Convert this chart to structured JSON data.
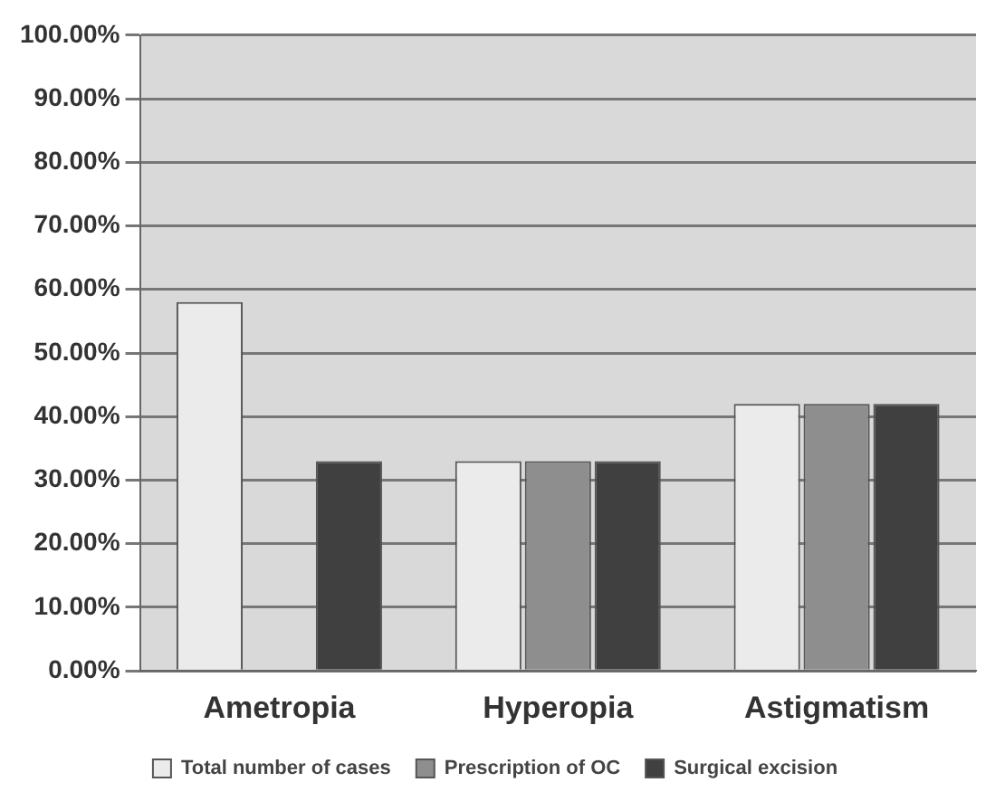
{
  "chart_data": {
    "type": "bar",
    "categories": [
      "Ametropia",
      "Hyperopia",
      "Astigmatism"
    ],
    "series": [
      {
        "name": "Total number of cases",
        "color": "#ebebeb",
        "values": [
          58,
          33,
          42
        ]
      },
      {
        "name": "Prescription of OC",
        "color": "#8e8e8e",
        "values": [
          0,
          33,
          42
        ]
      },
      {
        "name": "Surgical excision",
        "color": "#404040",
        "values": [
          33,
          33,
          42
        ]
      }
    ],
    "ylim": [
      0,
      100
    ],
    "yticks": [
      {
        "value": 0,
        "label": "0.00%"
      },
      {
        "value": 10,
        "label": "10.00%"
      },
      {
        "value": 20,
        "label": "20.00%"
      },
      {
        "value": 30,
        "label": "30.00%"
      },
      {
        "value": 40,
        "label": "40.00%"
      },
      {
        "value": 50,
        "label": "50.00%"
      },
      {
        "value": 60,
        "label": "60.00%"
      },
      {
        "value": 70,
        "label": "70.00%"
      },
      {
        "value": 80,
        "label": "80.00%"
      },
      {
        "value": 90,
        "label": "90.00%"
      },
      {
        "value": 100,
        "label": "100.00%"
      }
    ],
    "grid": "y",
    "legend": "bottom"
  }
}
